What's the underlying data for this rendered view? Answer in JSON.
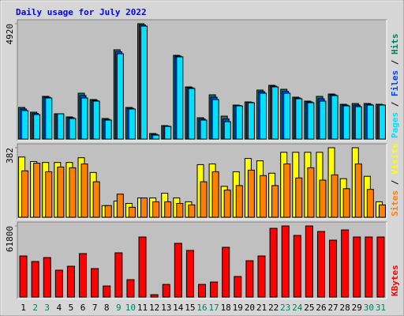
{
  "chart_data": [
    {
      "type": "bar",
      "title": "Daily usage for July 2022",
      "ylim": [
        0,
        4920
      ],
      "yticks": [
        4920
      ],
      "legend_separator": "/",
      "series": [
        {
          "name": "Pages",
          "color": "#00e0ff",
          "values": [
            1213,
            1045,
            1752,
            1078,
            876,
            1752,
            1618,
            809,
            3640,
            1281,
            4819,
            168,
            539,
            3505,
            2157,
            809,
            1685,
            741,
            1415,
            1550,
            1955,
            2224,
            1955,
            1719,
            1550,
            1618,
            1853,
            1415,
            1382,
            1449,
            1449
          ]
        },
        {
          "name": "Files",
          "color": "#0040ff",
          "values": [
            1280,
            1095,
            1786,
            1078,
            910,
            1853,
            1651,
            842,
            3724,
            1314,
            4870,
            202,
            556,
            3538,
            2190,
            860,
            1786,
            859,
            1432,
            1567,
            2022,
            2258,
            2039,
            1752,
            1584,
            1719,
            1887,
            1449,
            1449,
            1482,
            1466
          ]
        },
        {
          "name": "Hits",
          "color": "#00805c",
          "values": [
            1348,
            1146,
            1820,
            1078,
            944,
            1955,
            1685,
            876,
            3808,
            1348,
            4920,
            236,
            573,
            3572,
            2224,
            910,
            1887,
            977,
            1449,
            1584,
            2089,
            2292,
            2123,
            1786,
            1618,
            1820,
            1921,
            1483,
            1516,
            1516,
            1483
          ]
        }
      ]
    },
    {
      "type": "bar",
      "ylim": [
        0,
        382
      ],
      "yticks": [
        382
      ],
      "legend_separator": "/",
      "series": [
        {
          "name": "Sites",
          "color": "#ff8000",
          "values": [
            255,
            297,
            250,
            276,
            272,
            293,
            195,
            64,
            127,
            55,
            106,
            85,
            85,
            76,
            68,
            195,
            250,
            149,
            174,
            259,
            229,
            174,
            293,
            216,
            272,
            204,
            233,
            157,
            293,
            153,
            68
          ]
        },
        {
          "name": "Visits",
          "color": "#ffff00",
          "values": [
            331,
            306,
            301,
            301,
            301,
            327,
            246,
            64,
            89,
            76,
            106,
            106,
            132,
            106,
            85,
            289,
            293,
            170,
            250,
            323,
            310,
            242,
            357,
            357,
            357,
            357,
            382,
            212,
            382,
            225,
            85
          ]
        }
      ]
    },
    {
      "type": "bar",
      "ylim": [
        0,
        61800
      ],
      "yticks": [
        61800
      ],
      "categories": [
        "1",
        "2",
        "3",
        "4",
        "5",
        "6",
        "7",
        "8",
        "9",
        "10",
        "11",
        "12",
        "13",
        "14",
        "15",
        "16",
        "17",
        "18",
        "19",
        "20",
        "21",
        "22",
        "23",
        "24",
        "25",
        "26",
        "27",
        "28",
        "29",
        "30",
        "31"
      ],
      "category_colors": [
        "#000000",
        "#00805c",
        "#00805c",
        "#000000",
        "#000000",
        "#000000",
        "#000000",
        "#000000",
        "#00805c",
        "#00805c",
        "#000000",
        "#000000",
        "#000000",
        "#000000",
        "#000000",
        "#00805c",
        "#00805c",
        "#000000",
        "#000000",
        "#000000",
        "#000000",
        "#000000",
        "#00805c",
        "#00805c",
        "#000000",
        "#000000",
        "#000000",
        "#000000",
        "#000000",
        "#00805c",
        "#00805c"
      ],
      "series": [
        {
          "name": "KBytes",
          "color": "#ff0000",
          "values": [
            35707,
            30900,
            34333,
            23347,
            26780,
            37767,
            24720,
            9613,
            38453,
            15107,
            52187,
            2060,
            10987,
            46693,
            40513,
            10987,
            13047,
            43260,
            17853,
            31587,
            35707,
            59740,
            61800,
            53560,
            61800,
            56993,
            49440,
            58367,
            52187,
            52187,
            52187
          ]
        }
      ]
    }
  ]
}
